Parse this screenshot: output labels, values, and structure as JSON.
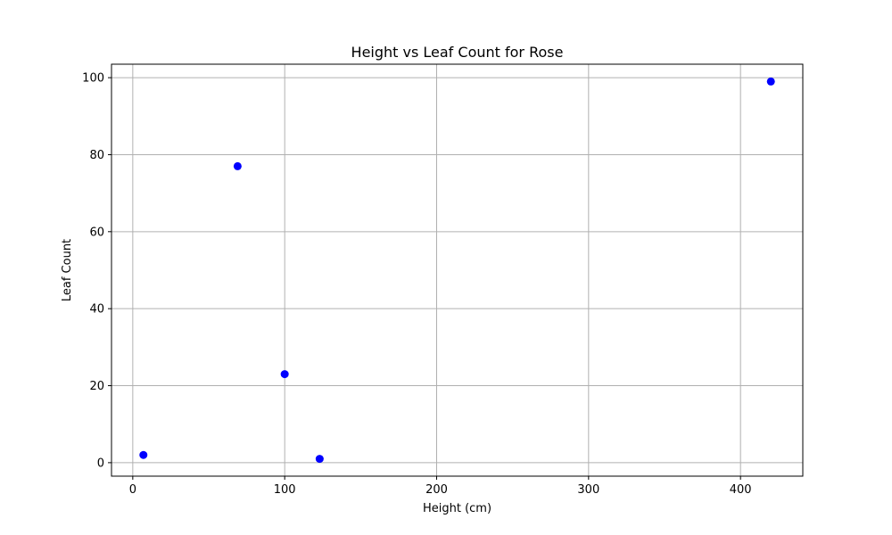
{
  "chart_data": {
    "type": "scatter",
    "title": "Height vs Leaf Count for Rose",
    "xlabel": "Height (cm)",
    "ylabel": "Leaf Count",
    "xlim": [
      -14,
      441
    ],
    "ylim": [
      -3.5,
      103.5
    ],
    "xticks": [
      0,
      100,
      200,
      300,
      400
    ],
    "yticks": [
      0,
      20,
      40,
      60,
      80,
      100
    ],
    "grid": true,
    "marker_color": "#0000ff",
    "points": [
      {
        "x": 7,
        "y": 2
      },
      {
        "x": 69,
        "y": 77
      },
      {
        "x": 100,
        "y": 23
      },
      {
        "x": 123,
        "y": 1
      },
      {
        "x": 420,
        "y": 99
      }
    ]
  }
}
